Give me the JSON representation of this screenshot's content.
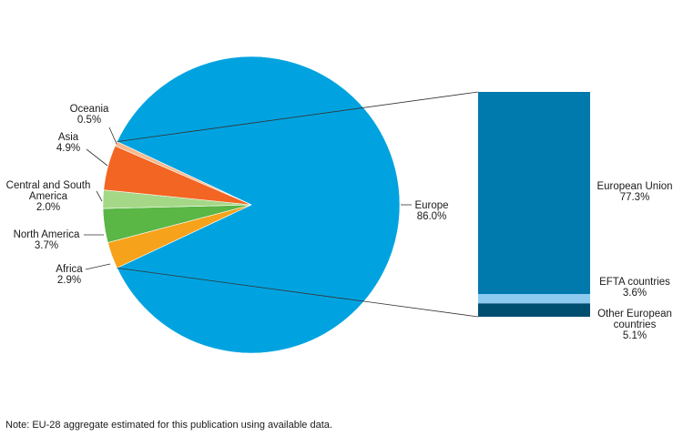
{
  "chart_data": {
    "type": "pie",
    "pie": {
      "slices": [
        {
          "label": "Europe",
          "value": 86.0,
          "value_label": "86.0%",
          "color": "#00a3e0"
        },
        {
          "label": "Africa",
          "value": 2.9,
          "value_label": "2.9%",
          "color": "#f7a21b"
        },
        {
          "label": "North America",
          "value": 3.7,
          "value_label": "3.7%",
          "color": "#5ab645"
        },
        {
          "label": "Central and South America",
          "value": 2.0,
          "value_label": "2.0%",
          "color": "#a4d886"
        },
        {
          "label": "Asia",
          "value": 4.9,
          "value_label": "4.9%",
          "color": "#f26522"
        },
        {
          "label": "Oceania",
          "value": 0.5,
          "value_label": "0.5%",
          "color": "#f7b98e"
        }
      ]
    },
    "breakdown": {
      "parent": "Europe",
      "type": "stacked-bar",
      "segments": [
        {
          "label": "European Union",
          "value": 77.3,
          "value_label": "77.3%",
          "color": "#0079ad"
        },
        {
          "label": "EFTA countries",
          "value": 3.6,
          "value_label": "3.6%",
          "color": "#8ecaf0"
        },
        {
          "label": "Other European countries",
          "value": 5.1,
          "value_label": "5.1%",
          "color": "#004f71"
        }
      ]
    }
  },
  "note": "Note: EU-28 aggregate estimated for this publication using available data."
}
